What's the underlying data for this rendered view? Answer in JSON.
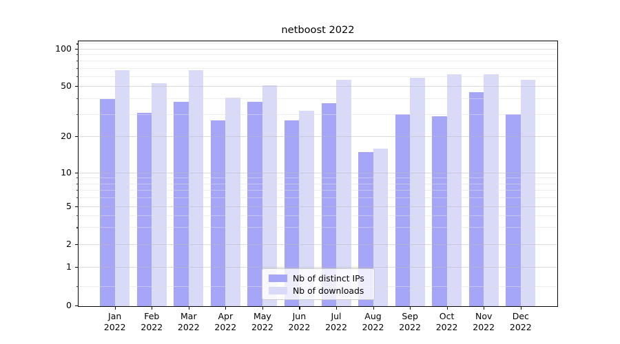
{
  "title": "netboost 2022",
  "chart_data": {
    "type": "bar",
    "title": "netboost 2022",
    "categories": [
      "Jan",
      "Feb",
      "Mar",
      "Apr",
      "May",
      "Jun",
      "Jul",
      "Aug",
      "Sep",
      "Oct",
      "Nov",
      "Dec"
    ],
    "year_label": "2022",
    "series": [
      {
        "name": "Nb of distinct IPs",
        "color": "#a6a6f8",
        "values": [
          40,
          31,
          38,
          27,
          38,
          27,
          37,
          15,
          30,
          29,
          45,
          30
        ]
      },
      {
        "name": "Nb of downloads",
        "color": "#d9d9f8",
        "values": [
          68,
          53,
          68,
          41,
          51,
          32,
          57,
          16,
          59,
          63,
          63,
          57
        ]
      }
    ],
    "y_axis": {
      "scale": "symlog",
      "ticks": [
        0,
        1,
        2,
        5,
        10,
        20,
        50,
        100
      ],
      "minor_ticks": [
        0.5,
        3,
        4,
        6,
        7,
        8,
        9,
        30,
        40,
        60,
        70,
        80,
        90,
        110
      ],
      "ylim": [
        0,
        116
      ]
    },
    "x_axis": {
      "tick_labels_two_lines": true
    },
    "grid": true,
    "legend_position": "lower center"
  }
}
